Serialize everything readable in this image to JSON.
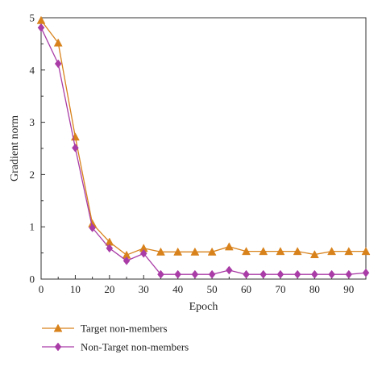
{
  "chart_data": {
    "type": "line",
    "title": "",
    "xlabel": "Epoch",
    "ylabel": "Gradient norm",
    "xlim": [
      0,
      95
    ],
    "ylim": [
      0,
      5
    ],
    "grid": false,
    "legend_placement": "bottom-left",
    "x_ticks": [
      0,
      10,
      20,
      30,
      40,
      50,
      60,
      70,
      80,
      90
    ],
    "y_ticks": [
      0,
      1,
      2,
      3,
      4,
      5
    ],
    "x": [
      0,
      5,
      10,
      15,
      20,
      25,
      30,
      35,
      40,
      45,
      50,
      55,
      60,
      65,
      70,
      75,
      80,
      85,
      90,
      95
    ],
    "series": [
      {
        "name": "Target non-members",
        "marker": "triangle",
        "color": "#D8821C",
        "values": [
          4.95,
          4.52,
          2.72,
          1.06,
          0.71,
          0.46,
          0.59,
          0.52,
          0.52,
          0.52,
          0.52,
          0.62,
          0.53,
          0.53,
          0.53,
          0.53,
          0.47,
          0.53,
          0.53,
          0.53
        ]
      },
      {
        "name": "Non-Target non-members",
        "marker": "diamond",
        "color": "#A93CA6",
        "values": [
          4.81,
          4.12,
          2.51,
          0.98,
          0.59,
          0.35,
          0.49,
          0.09,
          0.09,
          0.09,
          0.09,
          0.17,
          0.09,
          0.09,
          0.09,
          0.09,
          0.09,
          0.09,
          0.09,
          0.12
        ]
      }
    ]
  }
}
